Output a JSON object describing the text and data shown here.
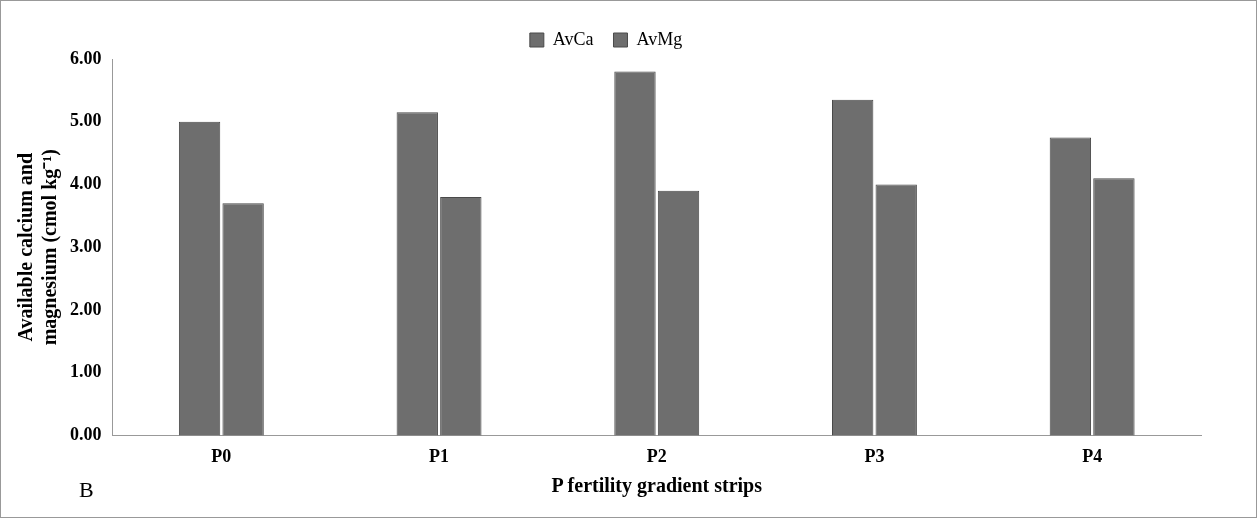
{
  "chart_data": {
    "type": "bar",
    "xlabel": "P fertility gradient strips",
    "ylabel": "Available calcium and magnesium (cmol kg⁻¹)",
    "categories": [
      "P0",
      "P1",
      "P2",
      "P3",
      "P4"
    ],
    "series": [
      {
        "name": "AvCa",
        "color": "#6e6e6e",
        "values": [
          5.0,
          5.15,
          5.8,
          5.35,
          4.75
        ]
      },
      {
        "name": "AvMg",
        "color": "#6e6e6e",
        "values": [
          3.7,
          3.8,
          3.9,
          4.0,
          4.1
        ]
      }
    ],
    "ylim": [
      0,
      6
    ],
    "yticks": [
      {
        "value": 0,
        "label": "0.00"
      },
      {
        "value": 1,
        "label": "1.00"
      },
      {
        "value": 2,
        "label": "2.00"
      },
      {
        "value": 3,
        "label": "3.00"
      },
      {
        "value": 4,
        "label": "4.00"
      },
      {
        "value": 5,
        "label": "5.00"
      },
      {
        "value": 6,
        "label": "6.00"
      }
    ],
    "grid": false,
    "legend": "top",
    "annotations": [
      "B"
    ]
  }
}
